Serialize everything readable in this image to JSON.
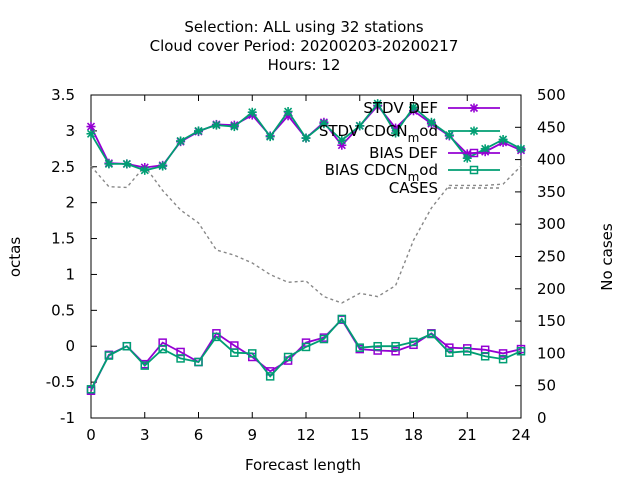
{
  "chart_data": {
    "type": "line",
    "title_lines": [
      "Selection: ALL using    32 stations",
      "Cloud cover   Period: 20200203-20200217",
      "Hours:  12"
    ],
    "xlabel": "Forecast length",
    "ylabel": "octas",
    "y2label": "No cases",
    "xlim": [
      0,
      24
    ],
    "ylim": [
      -1,
      3.5
    ],
    "y2lim": [
      0,
      500
    ],
    "xticks": [
      0,
      3,
      6,
      9,
      12,
      15,
      18,
      21,
      24
    ],
    "yticks": [
      -1,
      -0.5,
      0,
      0.5,
      1,
      1.5,
      2,
      2.5,
      3,
      3.5
    ],
    "y2ticks": [
      0,
      50,
      100,
      150,
      200,
      250,
      300,
      350,
      400,
      450,
      500
    ],
    "grid": false,
    "legend_position": "top-right",
    "x": [
      0,
      1,
      2,
      3,
      4,
      5,
      6,
      7,
      8,
      9,
      10,
      11,
      12,
      13,
      14,
      15,
      16,
      17,
      18,
      19,
      20,
      21,
      22,
      23,
      24
    ],
    "series": [
      {
        "name": "STDV DEF",
        "color": "#9400d3",
        "marker": "x-star",
        "axis": "y1",
        "values": [
          3.06,
          2.55,
          2.54,
          2.49,
          2.52,
          2.85,
          2.99,
          3.09,
          3.08,
          3.22,
          2.93,
          3.21,
          2.9,
          3.12,
          2.8,
          3.07,
          3.35,
          3.04,
          3.28,
          3.1,
          2.93,
          2.68,
          2.71,
          2.84,
          2.73
        ]
      },
      {
        "name": "STDV CDCNmod",
        "color": "#009e73",
        "marker": "x-star",
        "axis": "y1",
        "values": [
          2.96,
          2.54,
          2.54,
          2.45,
          2.51,
          2.86,
          3.0,
          3.08,
          3.06,
          3.26,
          2.92,
          3.27,
          2.9,
          3.1,
          2.87,
          3.07,
          3.38,
          2.97,
          3.33,
          3.12,
          2.94,
          2.62,
          2.75,
          2.88,
          2.75
        ]
      },
      {
        "name": "BIAS DEF",
        "color": "#9400d3",
        "marker": "square",
        "axis": "y1",
        "values": [
          -0.62,
          -0.12,
          0.0,
          -0.25,
          0.05,
          -0.08,
          -0.22,
          0.18,
          0.01,
          -0.15,
          -0.35,
          -0.2,
          0.05,
          0.12,
          0.37,
          -0.04,
          -0.06,
          -0.07,
          0.02,
          0.18,
          -0.02,
          -0.03,
          -0.05,
          -0.1,
          -0.04
        ]
      },
      {
        "name": "BIAS CDCNmod",
        "color": "#009e73",
        "marker": "square",
        "axis": "y1",
        "values": [
          -0.6,
          -0.13,
          0.0,
          -0.27,
          -0.04,
          -0.17,
          -0.22,
          0.13,
          -0.09,
          -0.1,
          -0.42,
          -0.15,
          -0.01,
          0.1,
          0.38,
          -0.02,
          0.0,
          0.0,
          0.06,
          0.17,
          -0.09,
          -0.07,
          -0.14,
          -0.18,
          -0.07
        ]
      },
      {
        "name": "CASES",
        "color": "#888888",
        "marker": "none",
        "axis": "y2",
        "dashed": true,
        "values": [
          390,
          358,
          357,
          390,
          352,
          322,
          302,
          260,
          252,
          240,
          222,
          210,
          212,
          188,
          178,
          193,
          188,
          205,
          275,
          325,
          360,
          360,
          360,
          362,
          390
        ]
      }
    ]
  },
  "legend": [
    {
      "label": "STDV DEF"
    },
    {
      "label": "STDV CDCN",
      "sub": "m",
      "tail": "od"
    },
    {
      "label": "BIAS DEF"
    },
    {
      "label": "BIAS CDCN",
      "sub": "m",
      "tail": "od"
    },
    {
      "label": "CASES"
    }
  ]
}
